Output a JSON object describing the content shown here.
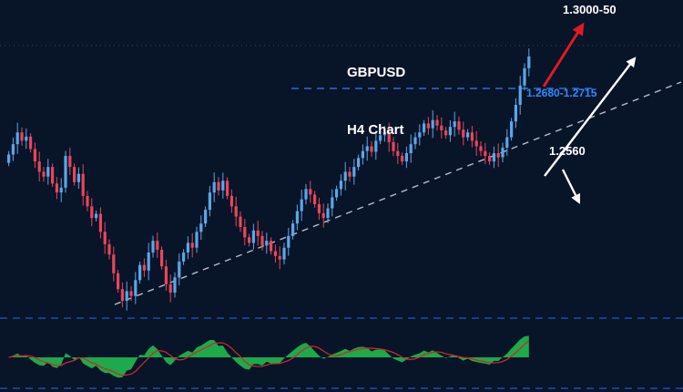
{
  "header": {
    "symbol": "GBPUSD",
    "timeframe": "H4 Chart"
  },
  "annotations": {
    "upside_target": "1.3000-50",
    "resistance_zone": "1.2680-1.2715",
    "support_level": "1.2560"
  },
  "colors": {
    "background": "#081428",
    "bull_candle": "#5aa7e8",
    "bear_candle": "#e8465a",
    "level_line": "#2b6fd4",
    "panel_divider": "#1c4fae",
    "grid_dotted": "#3a465f",
    "trendline": "#b7bdc9",
    "oscillator_green": "#1fb24c",
    "oscillator_signal": "#c92a2a",
    "annotation_red": "#e01a22",
    "annotation_white": "#ffffff"
  },
  "chart_data": {
    "type": "candlestick",
    "symbol": "GBPUSD",
    "timeframe": "H4",
    "title": "GBPUSD H4 Chart",
    "price_range_estimate": [
      1.244,
      1.285
    ],
    "levels": {
      "resistance_zone": [
        1.268,
        1.2715
      ],
      "support": 1.256,
      "upside_target": [
        1.3,
        1.305
      ]
    },
    "trendline": "ascending dashed support line from the major swing low rising to the right edge",
    "scenarios": {
      "bullish": "breakout above 1.2680-1.2715 projecting toward 1.3000-50",
      "bearish": "rejection back toward 1.2560 support"
    },
    "open_rule": "each candle opens at the previous candle close; first open 1.2678",
    "closes": [
      1.269,
      1.2705,
      1.2722,
      1.271,
      1.2716,
      1.2698,
      1.268,
      1.2665,
      1.2658,
      1.2672,
      1.2648,
      1.2635,
      1.2642,
      1.2688,
      1.2672,
      1.265,
      1.2662,
      1.263,
      1.2615,
      1.2598,
      1.2604,
      1.2578,
      1.256,
      1.2545,
      1.2518,
      1.2495,
      1.2478,
      1.2492,
      1.2485,
      1.2508,
      1.253,
      1.2522,
      1.2548,
      1.2565,
      1.2552,
      1.2528,
      1.2502,
      1.249,
      1.2512,
      1.2535,
      1.2548,
      1.2562,
      1.2555,
      1.2578,
      1.259,
      1.261,
      1.2635,
      1.265,
      1.2638,
      1.2652,
      1.263,
      1.2615,
      1.26,
      1.2585,
      1.257,
      1.2562,
      1.258,
      1.2572,
      1.2558,
      1.2565,
      1.255,
      1.2543,
      1.2538,
      1.2555,
      1.2572,
      1.259,
      1.2608,
      1.2625,
      1.264,
      1.2632,
      1.2618,
      1.2605,
      1.2598,
      1.2612,
      1.2628,
      1.264,
      1.2652,
      1.2665,
      1.2658,
      1.2672,
      1.2685,
      1.2695,
      1.2702,
      1.2694,
      1.271,
      1.2718,
      1.2722,
      1.2708,
      1.2695,
      1.2688,
      1.268,
      1.2692,
      1.2705,
      1.2715,
      1.2722,
      1.2735,
      1.2728,
      1.274,
      1.2732,
      1.2725,
      1.2718,
      1.273,
      1.2738,
      1.2726,
      1.2715,
      1.2722,
      1.271,
      1.2702,
      1.2695,
      1.2688,
      1.268,
      1.2692,
      1.2686,
      1.27,
      1.2715,
      1.2738,
      1.2762,
      1.279,
      1.2815,
      1.2832
    ],
    "oscillator": "lower panel momentum oscillator, derived as close minus 10-period SMA, green area with red signal line"
  }
}
